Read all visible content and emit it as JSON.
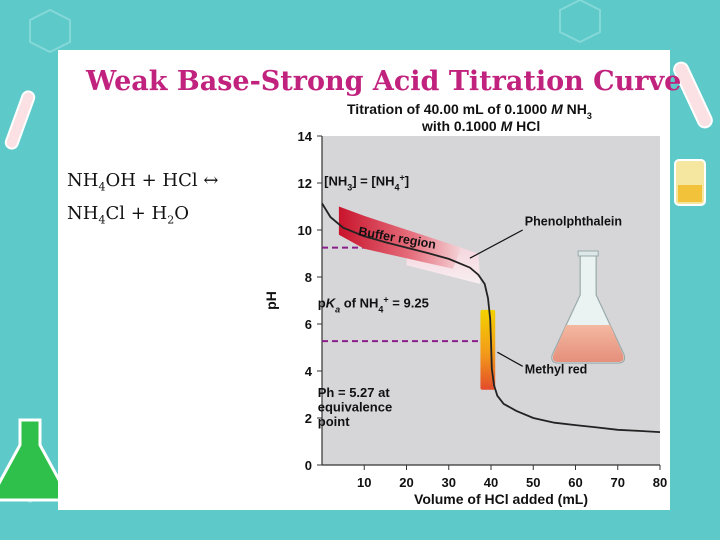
{
  "slide": {
    "title": "Weak Base-Strong Acid Titration Curve",
    "equation": {
      "line1": [
        "NH",
        "4",
        "OH + HCl ↔"
      ],
      "line2": [
        "NH",
        "4",
        "Cl + H",
        "2",
        "O"
      ]
    }
  },
  "chart_data": {
    "type": "line",
    "title_line1_parts": [
      {
        "t": "Titration of 40.00 mL of 0.1000 "
      },
      {
        "t": "M",
        "i": true
      },
      {
        "t": " NH"
      },
      {
        "t": "3",
        "sub": true
      }
    ],
    "title_line2_parts": [
      {
        "t": "with 0.1000 "
      },
      {
        "t": "M",
        "i": true
      },
      {
        "t": " HCl"
      }
    ],
    "xlabel": "Volume of HCl added (mL)",
    "ylabel": "pH",
    "xlim": [
      0,
      80
    ],
    "ylim": [
      0,
      14
    ],
    "x_ticks": [
      10,
      20,
      30,
      40,
      50,
      60,
      70,
      80
    ],
    "y_ticks": [
      0,
      2,
      4,
      6,
      8,
      10,
      12,
      14
    ],
    "series": [
      {
        "x": [
          0,
          2,
          5,
          10,
          15,
          20,
          25,
          30,
          35,
          37,
          38.5,
          39.3,
          39.8,
          40,
          40.2,
          40.7,
          41.5,
          43,
          46,
          50,
          55,
          60,
          65,
          70,
          75,
          80
        ],
        "y": [
          11.13,
          10.55,
          10.1,
          9.73,
          9.48,
          9.25,
          9.02,
          8.77,
          8.4,
          8.1,
          7.7,
          7.1,
          6.2,
          5.27,
          4.1,
          3.4,
          2.95,
          2.6,
          2.3,
          2.0,
          1.8,
          1.7,
          1.6,
          1.5,
          1.45,
          1.4
        ]
      }
    ],
    "reference_lines": [
      {
        "y": 9.25,
        "x_to": 20
      },
      {
        "y": 5.27,
        "x_to": 40
      }
    ],
    "indicators": [
      {
        "name": "Phenolphthalein",
        "range": [
          8.2,
          10.0
        ]
      },
      {
        "name": "Methyl red",
        "range": [
          4.2,
          6.3
        ]
      }
    ],
    "annotations": {
      "equal_conc_parts": [
        {
          "t": "[NH"
        },
        {
          "t": "3",
          "sub": true
        },
        {
          "t": "] = [NH"
        },
        {
          "t": "4",
          "sub": true
        },
        {
          "t": "+",
          "sup": true
        },
        {
          "t": "]"
        }
      ],
      "buffer_region": "Buffer region",
      "phenolphthalein": "Phenolphthalein",
      "pka_parts": [
        {
          "t": "p"
        },
        {
          "t": "K",
          "i": true
        },
        {
          "t": "a",
          "sub": true,
          "i": true
        },
        {
          "t": " of NH"
        },
        {
          "t": "4",
          "sub": true
        },
        {
          "t": "+",
          "sup": true
        },
        {
          "t": " = 9.25"
        }
      ],
      "methyl_red": "Methyl red",
      "equivalence_lines": [
        "Ph = 5.27 at",
        "equivalence",
        "point"
      ]
    },
    "colors": {
      "plot_background": "#d6d6d9",
      "curve": "#222222",
      "reference": "#8a1f8a",
      "buffer": "#c8142c",
      "equivalence_marker": "#f3d200"
    }
  }
}
